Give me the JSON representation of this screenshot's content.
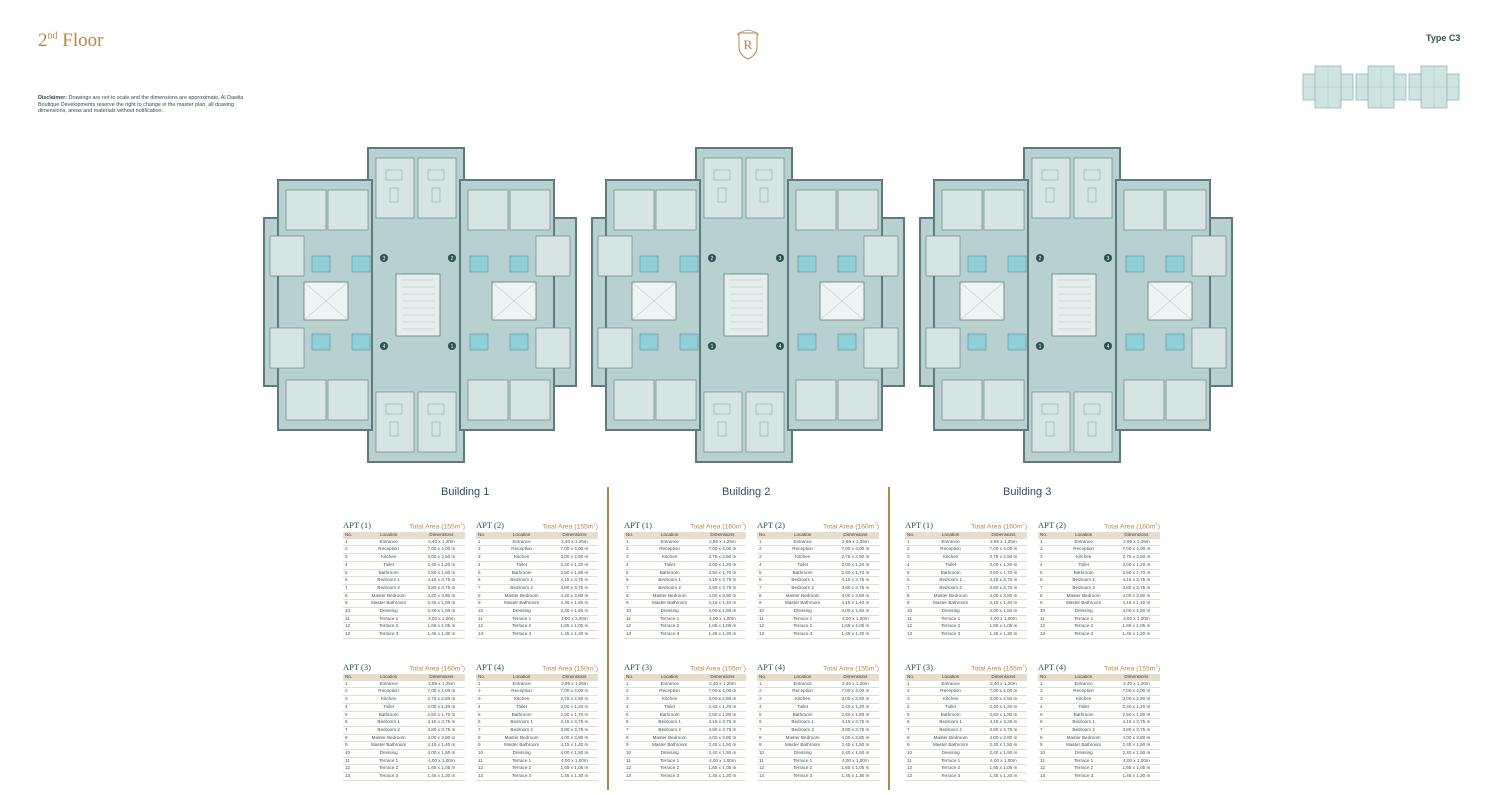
{
  "page": {
    "floor": "2",
    "floor_suffix": "nd",
    "floor_word": "Floor",
    "logo_letter": "R",
    "type_label": "Type C3",
    "disclaimer_head": "Disclaimer:",
    "disclaimer_text": "Drawings are not to scale and the dimensions are approximate, Al Dawlia Boutique Developments reserve the right to change in the master plan, all drawing dimensions, areas and materials without notification."
  },
  "colors": {
    "gold": "#b08a4a",
    "teal": "#2c5257",
    "plan_fill": "#b8d0d0",
    "plan_wall": "#5d7a7c",
    "room_fill": "#d6e5e4",
    "accent": "#8fd0d8"
  },
  "plan": {
    "core_labels": [
      "1",
      "2",
      "3",
      "4"
    ]
  },
  "table_headers": {
    "no": "No.",
    "location": "Location",
    "dimensions": "Dimensions"
  },
  "buildings": [
    {
      "name": "Building 1",
      "apartments": [
        {
          "name": "APT (1)",
          "area_label": "Total Area (155m",
          "area_sup": "2",
          "area_close": ")",
          "rows": [
            [
              "1",
              "Entrance",
              "2,40 x 1,20m"
            ],
            [
              "2",
              "Reception",
              "7,00 x 4,00 m"
            ],
            [
              "3",
              "Kitchen",
              "3,00 x 2,50 m"
            ],
            [
              "4",
              "Toilet",
              "2,40 x 1,20 m"
            ],
            [
              "5",
              "Bathroom",
              "2,50 x 1,80 m"
            ],
            [
              "6",
              "Bedroom 1",
              "4,15 x 3,75 m"
            ],
            [
              "7",
              "Bedroom 2",
              "3,80 x 3,75 m"
            ],
            [
              "8",
              "Master Bedroom",
              "4,20 x 3,80 m"
            ],
            [
              "9",
              "Master Bathroom",
              "2,45 x 1,50 m"
            ],
            [
              "10",
              "Dressing",
              "2,40 x 1,50 m"
            ],
            [
              "11",
              "Terrace 1",
              "4,00 x 1,00m"
            ],
            [
              "12",
              "Terrace 2",
              "1,65 x 1,05 m"
            ],
            [
              "13",
              "Terrace 3",
              "1,45 x 1,30 m"
            ]
          ]
        },
        {
          "name": "APT (2)",
          "area_label": "Total Area (155m",
          "area_sup": "2",
          "area_close": ")",
          "rows": [
            [
              "1",
              "Entrance",
              "2,40 x 1,25m"
            ],
            [
              "2",
              "Reception",
              "7,00 x 4,00 m"
            ],
            [
              "3",
              "Kitchen",
              "3,00 x 2,50 m"
            ],
            [
              "4",
              "Toilet",
              "2,40 x 1,20 m"
            ],
            [
              "5",
              "Bathroom",
              "2,50 x 1,80 m"
            ],
            [
              "6",
              "Bedroom 1",
              "4,15 x 3,75 m"
            ],
            [
              "7",
              "Bedroom 2",
              "3,80 x 3,75 m"
            ],
            [
              "8",
              "Master Bedroom",
              "4,20 x 3,80 m"
            ],
            [
              "9",
              "Master Bathroom",
              "2,45 x 1,50 m"
            ],
            [
              "10",
              "Dressing",
              "2,40 x 1,50 m"
            ],
            [
              "11",
              "Terrace 1",
              "4,00 x 1,00m"
            ],
            [
              "12",
              "Terrace 2",
              "1,65 x 1,05 m"
            ],
            [
              "13",
              "Terrace 3",
              "1,45 x 1,30 m"
            ]
          ]
        },
        {
          "name": "APT (3)",
          "area_label": "Total Area (160m",
          "area_sup": "2",
          "area_close": ")",
          "rows": [
            [
              "1",
              "Entrance",
              "2,95 x 1,25m"
            ],
            [
              "2",
              "Reception",
              "7,00 x 4,00 m"
            ],
            [
              "3",
              "Kitchen",
              "2,75 x 2,50 m"
            ],
            [
              "4",
              "Toilet",
              "2,00 x 1,20 m"
            ],
            [
              "5",
              "Bathroom",
              "2,50 x 1,70 m"
            ],
            [
              "6",
              "Bedroom 1",
              "4,15 x 3,75 m"
            ],
            [
              "7",
              "Bedroom 2",
              "3,80 x 3,75 m"
            ],
            [
              "8",
              "Master Bedroom",
              "4,00 x 3,80 m"
            ],
            [
              "9",
              "Master Bathroom",
              "4,15 x 1,40 m"
            ],
            [
              "10",
              "Dressing",
              "4,00 x 1,50 m"
            ],
            [
              "11",
              "Terrace 1",
              "4,00 x 1,00m"
            ],
            [
              "12",
              "Terrace 2",
              "1,65 x 1,05 m"
            ],
            [
              "13",
              "Terrace 3",
              "1,45 x 1,30 m"
            ]
          ]
        },
        {
          "name": "APT (4)",
          "area_label": "Total Area (160m",
          "area_sup": "2",
          "area_close": ")",
          "rows": [
            [
              "1",
              "Entrance",
              "2,95 x 1,25m"
            ],
            [
              "2",
              "Reception",
              "7,00 x 4,00 m"
            ],
            [
              "3",
              "Kitchen",
              "2,75 x 2,50 m"
            ],
            [
              "4",
              "Toilet",
              "2,00 x 1,20 m"
            ],
            [
              "5",
              "Bathroom",
              "2,50 x 1,70 m"
            ],
            [
              "6",
              "Bedroom 1",
              "4,15 x 3,75 m"
            ],
            [
              "7",
              "Bedroom 2",
              "3,80 x 3,75 m"
            ],
            [
              "8",
              "Master Bedroom",
              "4,00 x 3,80 m"
            ],
            [
              "9",
              "Master Bathroom",
              "4,15 x 1,40 m"
            ],
            [
              "10",
              "Dressing",
              "4,00 x 1,50 m"
            ],
            [
              "11",
              "Terrace 1",
              "4,00 x 1,00m"
            ],
            [
              "12",
              "Terrace 2",
              "1,65 x 1,05 m"
            ],
            [
              "13",
              "Terrace 3",
              "1,45 x 1,30 m"
            ]
          ]
        }
      ]
    },
    {
      "name": "Building 2",
      "apartments": [
        {
          "name": "APT (1)",
          "area_label": "Total Area (160m",
          "area_sup": "2",
          "area_close": ")",
          "rows": [
            [
              "1",
              "Entrance",
              "2,95 x 1,25m"
            ],
            [
              "2",
              "Reception",
              "7,00 x 4,00 m"
            ],
            [
              "3",
              "Kitchen",
              "2,75 x 2,50 m"
            ],
            [
              "4",
              "Toilet",
              "2,00 x 1,20 m"
            ],
            [
              "5",
              "Bathroom",
              "2,50 x 1,70 m"
            ],
            [
              "6",
              "Bedroom 1",
              "4,15 x 3,75 m"
            ],
            [
              "7",
              "Bedroom 2",
              "3,80 x 3,75 m"
            ],
            [
              "8",
              "Master Bedroom",
              "4,00 x 3,80 m"
            ],
            [
              "9",
              "Master Bathroom",
              "4,15 x 1,40 m"
            ],
            [
              "10",
              "Dressing",
              "4,00 x 1,50 m"
            ],
            [
              "11",
              "Terrace 1",
              "4,00 x 1,00m"
            ],
            [
              "12",
              "Terrace 2",
              "1,65 x 1,05 m"
            ],
            [
              "13",
              "Terrace 3",
              "1,45 x 1,30 m"
            ]
          ]
        },
        {
          "name": "APT (2)",
          "area_label": "Total Area (160m",
          "area_sup": "2",
          "area_close": ")",
          "rows": [
            [
              "1",
              "Entrance",
              "2,95 x 1,25m"
            ],
            [
              "2",
              "Reception",
              "7,00 x 4,00 m"
            ],
            [
              "3",
              "Kitchen",
              "2,75 x 2,50 m"
            ],
            [
              "4",
              "Toilet",
              "2,00 x 1,20 m"
            ],
            [
              "5",
              "Bathroom",
              "2,50 x 1,70 m"
            ],
            [
              "6",
              "Bedroom 1",
              "4,15 x 3,75 m"
            ],
            [
              "7",
              "Bedroom 2",
              "3,80 x 3,75 m"
            ],
            [
              "8",
              "Master Bedroom",
              "4,00 x 3,80 m"
            ],
            [
              "9",
              "Master Bathroom",
              "4,15 x 1,40 m"
            ],
            [
              "10",
              "Dressing",
              "4,00 x 1,50 m"
            ],
            [
              "11",
              "Terrace 1",
              "4,00 x 1,00m"
            ],
            [
              "12",
              "Terrace 2",
              "1,65 x 1,05 m"
            ],
            [
              "13",
              "Terrace 3",
              "1,45 x 1,20 m"
            ]
          ]
        },
        {
          "name": "APT (3)",
          "area_label": "Total Area (155m",
          "area_sup": "2",
          "area_close": ")",
          "rows": [
            [
              "1",
              "Entrance",
              "2,40 x 1,20m"
            ],
            [
              "2",
              "Reception",
              "7,00 x 4,00 m"
            ],
            [
              "3",
              "Kitchen",
              "3,00 x 2,50 m"
            ],
            [
              "4",
              "Toilet",
              "2,40 x 1,20 m"
            ],
            [
              "5",
              "Bathroom",
              "2,50 x 1,80 m"
            ],
            [
              "6",
              "Bedroom 1",
              "4,15 x 3,75 m"
            ],
            [
              "7",
              "Bedroom 2",
              "3,80 x 3,75 m"
            ],
            [
              "8",
              "Master Bedroom",
              "4,00 x 3,80 m"
            ],
            [
              "9",
              "Master Bathroom",
              "2,45 x 1,50 m"
            ],
            [
              "10",
              "Dressing",
              "2,40 x 1,50 m"
            ],
            [
              "11",
              "Terrace 1",
              "4,00 x 1,00m"
            ],
            [
              "12",
              "Terrace 2",
              "1,65 x 1,05 m"
            ],
            [
              "13",
              "Terrace 3",
              "1,45 x 1,20 m"
            ]
          ]
        },
        {
          "name": "APT (4)",
          "area_label": "Total Area (155m",
          "area_sup": "2",
          "area_close": ")",
          "rows": [
            [
              "1",
              "Entrance",
              "2,40 x 1,20m"
            ],
            [
              "2",
              "Reception",
              "7,00 x 4,00 m"
            ],
            [
              "3",
              "Kitchen",
              "3,00 x 2,50 m"
            ],
            [
              "4",
              "Toilet",
              "2,40 x 1,20 m"
            ],
            [
              "5",
              "Bathroom",
              "2,50 x 1,80 m"
            ],
            [
              "6",
              "Bedroom 1",
              "4,15 x 3,75 m"
            ],
            [
              "7",
              "Bedroom 2",
              "3,80 x 3,75 m"
            ],
            [
              "8",
              "Master Bedroom",
              "4,00 x 3,80 m"
            ],
            [
              "9",
              "Master Bathroom",
              "2,45 x 1,50 m"
            ],
            [
              "10",
              "Dressing",
              "2,40 x 1,50 m"
            ],
            [
              "11",
              "Terrace 1",
              "4,00 x 1,00m"
            ],
            [
              "12",
              "Terrace 2",
              "1,65 x 1,05 m"
            ],
            [
              "13",
              "Terrace 3",
              "1,45 x 1,30 m"
            ]
          ]
        }
      ]
    },
    {
      "name": "Building 3",
      "apartments": [
        {
          "name": "APT (1)",
          "area_label": "Total Area (160m",
          "area_sup": "2",
          "area_close": ")",
          "rows": [
            [
              "1",
              "Entrance",
              "2,95 x 1,25m"
            ],
            [
              "2",
              "Reception",
              "7,00 x 4,00 m"
            ],
            [
              "3",
              "Kitchen",
              "2,75 x 2,50 m"
            ],
            [
              "4",
              "Toilet",
              "2,00 x 1,20 m"
            ],
            [
              "5",
              "Bathroom",
              "2,50 x 1,70 m"
            ],
            [
              "6",
              "Bedroom 1",
              "4,15 x 3,75 m"
            ],
            [
              "7",
              "Bedroom 2",
              "3,80 x 3,75 m"
            ],
            [
              "8",
              "Master Bedroom",
              "4,00 x 3,80 m"
            ],
            [
              "9",
              "Master Bathroom",
              "4,15 x 1,40 m"
            ],
            [
              "10",
              "Dressing",
              "4,00 x 1,50 m"
            ],
            [
              "11",
              "Terrace 1",
              "4,00 x 1,00m"
            ],
            [
              "12",
              "Terrace 2",
              "1,65 x 1,05 m"
            ],
            [
              "13",
              "Terrace 3",
              "1,45 x 1,30 m"
            ]
          ]
        },
        {
          "name": "APT (2)",
          "area_label": "Total Area (160m",
          "area_sup": "2",
          "area_close": ")",
          "rows": [
            [
              "1",
              "Entrance",
              "2,95 x 1,25m"
            ],
            [
              "2",
              "Reception",
              "7,00 x 4,00 m"
            ],
            [
              "3",
              "Kitchen",
              "2,75 x 2,50 m"
            ],
            [
              "4",
              "Toilet",
              "2,00 x 1,20 m"
            ],
            [
              "5",
              "Bathroom",
              "2,50 x 1,70 m"
            ],
            [
              "6",
              "Bedroom 1",
              "4,15 x 3,75 m"
            ],
            [
              "7",
              "Bedroom 2",
              "3,80 x 3,75 m"
            ],
            [
              "8",
              "Master Bedroom",
              "4,00 x 3,80 m"
            ],
            [
              "9",
              "Master Bathroom",
              "4,15 x 1,40 m"
            ],
            [
              "10",
              "Dressing",
              "4,00 x 1,50 m"
            ],
            [
              "11",
              "Terrace 1",
              "4,00 x 1,00m"
            ],
            [
              "12",
              "Terrace 2",
              "1,65 x 1,05 m"
            ],
            [
              "13",
              "Terrace 3",
              "1,45 x 1,20 m"
            ]
          ]
        },
        {
          "name": "APT (3)",
          "area_label": "Total Area (155m",
          "area_sup": "2",
          "area_close": ")",
          "rows": [
            [
              "1",
              "Entrance",
              "2,40 x 1,20m"
            ],
            [
              "2",
              "Reception",
              "7,00 x 4,00 m"
            ],
            [
              "3",
              "Kitchen",
              "3,00 x 2,50 m"
            ],
            [
              "4",
              "Toilet",
              "2,40 x 1,20 m"
            ],
            [
              "5",
              "Bathroom",
              "2,50 x 1,80 m"
            ],
            [
              "6",
              "Bedroom 1",
              "4,15 x 3,25 m"
            ],
            [
              "7",
              "Bedroom 2",
              "3,80 x 3,75 m"
            ],
            [
              "8",
              "Master Bedroom",
              "4,00 x 3,80 m"
            ],
            [
              "9",
              "Master Bathroom",
              "2,45 x 1,50 m"
            ],
            [
              "10",
              "Dressing",
              "2,40 x 1,50 m"
            ],
            [
              "11",
              "Terrace 1",
              "4,00 x 1,00m"
            ],
            [
              "12",
              "Terrace 2",
              "1,65 x 1,05 m"
            ],
            [
              "13",
              "Terrace 3",
              "1,45 x 1,20 m"
            ]
          ]
        },
        {
          "name": "APT (4)",
          "area_label": "Total Area (155m",
          "area_sup": "2",
          "area_close": ")",
          "rows": [
            [
              "1",
              "Entrance",
              "2,40 x 1,20m"
            ],
            [
              "2",
              "Reception",
              "7,00 x 4,00 m"
            ],
            [
              "3",
              "Kitchen",
              "3,00 x 2,50 m"
            ],
            [
              "4",
              "Toilet",
              "2,40 x 1,20 m"
            ],
            [
              "5",
              "Bathroom",
              "2,50 x 1,80 m"
            ],
            [
              "6",
              "Bedroom 1",
              "4,15 x 3,75 m"
            ],
            [
              "7",
              "Bedroom 2",
              "3,80 x 3,75 m"
            ],
            [
              "8",
              "Master Bedroom",
              "4,00 x 3,80 m"
            ],
            [
              "9",
              "Master Bathroom",
              "2,45 x 1,50 m"
            ],
            [
              "10",
              "Dressing",
              "2,40 x 1,50 m"
            ],
            [
              "11",
              "Terrace 1",
              "4,00 x 1,00m"
            ],
            [
              "12",
              "Terrace 2",
              "1,65 x 1,05 m"
            ],
            [
              "13",
              "Terrace 3",
              "1,45 x 1,30 m"
            ]
          ]
        }
      ]
    }
  ]
}
